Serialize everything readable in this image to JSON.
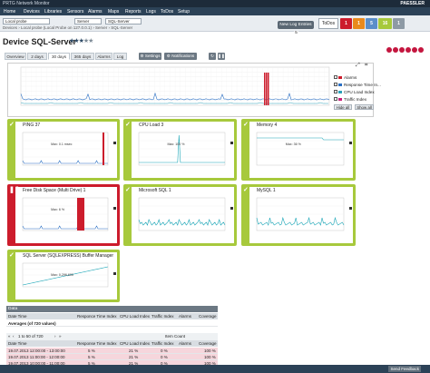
{
  "app": {
    "title": "PRTG Network Monitor",
    "logo": "PAESSLER"
  },
  "menu": [
    "Home",
    "Devices",
    "Libraries",
    "Sensors",
    "Alarms",
    "Maps",
    "Reports",
    "Logs",
    "ToDos",
    "Setup"
  ],
  "breadcrumb": {
    "path": "Devices › Local probe (Local Probe on 127.0.0.1) › Server › SQL-Server",
    "selects": [
      "Local probe",
      "Server",
      "SQL-Server"
    ]
  },
  "header": {
    "new_log_label": "New Log Entries",
    "new_log_count": "5",
    "todos_label": "ToDos",
    "status": [
      {
        "value": "1",
        "color": "#cc1c2c"
      },
      {
        "value": "1",
        "color": "#e98a1d"
      },
      {
        "value": "5",
        "color": "#5b8ec9"
      },
      {
        "value": "16",
        "color": "#a7c93c"
      },
      {
        "value": "1",
        "color": "#8e9aa5"
      }
    ]
  },
  "device": {
    "title": "Device SQL-Server",
    "priority_stars": 3,
    "priority_max": 5
  },
  "tabs": [
    "Overview",
    "2 days",
    "30 days",
    "365 days",
    "Alarms",
    "Log"
  ],
  "active_tab": "30 days",
  "tab_buttons": [
    "Settings",
    "Notifications"
  ],
  "legend": {
    "items": [
      {
        "label": "Alarms",
        "color": "#cc1c2c"
      },
      {
        "label": "Response Time In...",
        "color": "#2a6fc4"
      },
      {
        "label": "CPU Load Index",
        "color": "#2aa0b8"
      },
      {
        "label": "Traffic Index",
        "color": "#c81d7a"
      }
    ],
    "hide_all": "Hide all",
    "show_all": "Show all"
  },
  "sensors": [
    {
      "name": "PING 37",
      "status": "up",
      "annot": "Max: 0.1 msec"
    },
    {
      "name": "CPU Load 3",
      "status": "up",
      "annot": "Max: 100 %"
    },
    {
      "name": "Memory 4",
      "status": "up",
      "annot": "Max: 36 %"
    },
    {
      "name": "Free Disk Space (Multi Drive) 1",
      "status": "down",
      "annot": "Max: 6 %"
    },
    {
      "name": "Microsoft SQL 1",
      "status": "up",
      "annot": ""
    },
    {
      "name": "MySQL 1",
      "status": "up",
      "annot": ""
    },
    {
      "name": "SQL Server (SQLEXPRESS) Buffer Manager",
      "status": "up",
      "annot": "Max: 0,296,600"
    }
  ],
  "data_table": {
    "section_title": "Data",
    "summary_headers": [
      "Date Time",
      "Responce Time Index",
      "CPU Load Index",
      "Traffic Index",
      "Alarms",
      "Coverage"
    ],
    "averages": [
      "Averages (of 720 values)",
      "",
      "",
      "",
      "",
      ""
    ],
    "pagination": "1 to 50 of 720",
    "item_count": "Item Count",
    "headers": [
      "Date Time",
      "Response Time Index",
      "CPU Load Index",
      "Traffic Index",
      "Alarms",
      "Coverage"
    ],
    "rows": [
      [
        "19.07.2013 12:00:00 - 13:00:00",
        "5 %",
        "21 %",
        "0 %",
        "",
        "100 %"
      ],
      [
        "19.07.2013 11:00:00 - 12:00:00",
        "5 %",
        "21 %",
        "0 %",
        "",
        "100 %"
      ],
      [
        "19.07.2013 10:00:00 - 11:00:00",
        "5 %",
        "21 %",
        "0 %",
        "",
        "100 %"
      ]
    ]
  },
  "footer": {
    "feedback": "Send Feedback"
  }
}
